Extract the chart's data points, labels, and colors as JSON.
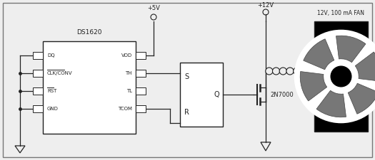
{
  "bg_color": "#eeeeee",
  "border_color": "#555555",
  "line_color": "#222222",
  "box_color": "#ffffff",
  "ds1620_label": "DS1620",
  "ds1620_pins_left": [
    "DQ",
    "CLK/CONV",
    "RST",
    "GND"
  ],
  "ds1620_pins_right": [
    "VDD",
    "TH",
    "TL",
    "TCOM"
  ],
  "overline_pins": [
    "CLK/CONV",
    "RST"
  ],
  "transistor_label": "2N7000",
  "v5_label": "+5V",
  "v12_label": "+12V",
  "fan_label": "12V, 100 mA FAN"
}
